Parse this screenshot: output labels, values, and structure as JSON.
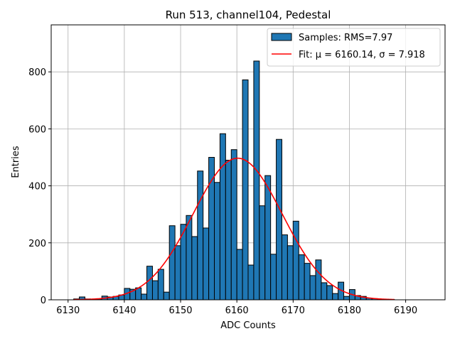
{
  "chart_data": {
    "type": "bar",
    "title": "Run 513, channel104, Pedestal",
    "xlabel": "ADC Counts",
    "ylabel": "Entries",
    "xlim": [
      6127,
      6197
    ],
    "ylim": [
      0,
      965
    ],
    "xticks": [
      6130,
      6140,
      6150,
      6160,
      6170,
      6180,
      6190
    ],
    "yticks": [
      0,
      200,
      400,
      600,
      800
    ],
    "grid": true,
    "legend_position": "top-right",
    "bar_color": "#1f77b4",
    "fit_color": "#ff0000",
    "bin_width": 1,
    "histogram": {
      "name": "Samples: RMS=7.97",
      "bin_starts": [
        6131,
        6132,
        6133,
        6134,
        6135,
        6136,
        6137,
        6138,
        6139,
        6140,
        6141,
        6142,
        6143,
        6144,
        6145,
        6146,
        6147,
        6148,
        6149,
        6150,
        6151,
        6152,
        6153,
        6154,
        6155,
        6156,
        6157,
        6158,
        6159,
        6160,
        6161,
        6162,
        6163,
        6164,
        6165,
        6166,
        6167,
        6168,
        6169,
        6170,
        6171,
        6172,
        6173,
        6174,
        6175,
        6176,
        6177,
        6178,
        6179,
        6180,
        6181,
        6182,
        6183,
        6184,
        6185,
        6186,
        6187
      ],
      "values": [
        3,
        10,
        3,
        2,
        3,
        13,
        10,
        12,
        17,
        40,
        37,
        42,
        20,
        118,
        67,
        107,
        27,
        260,
        190,
        265,
        296,
        222,
        452,
        252,
        500,
        412,
        583,
        490,
        527,
        177,
        772,
        122,
        838,
        330,
        436,
        160,
        563,
        228,
        190,
        276,
        158,
        128,
        85,
        140,
        60,
        50,
        22,
        62,
        12,
        36,
        15,
        12,
        6,
        4,
        2,
        2,
        1
      ]
    },
    "fit": {
      "name": "Fit: μ = 6160.14, σ = 7.918",
      "mu": 6160.14,
      "sigma": 7.918,
      "amplitude": 497,
      "x_range": [
        6131,
        6188
      ]
    }
  }
}
